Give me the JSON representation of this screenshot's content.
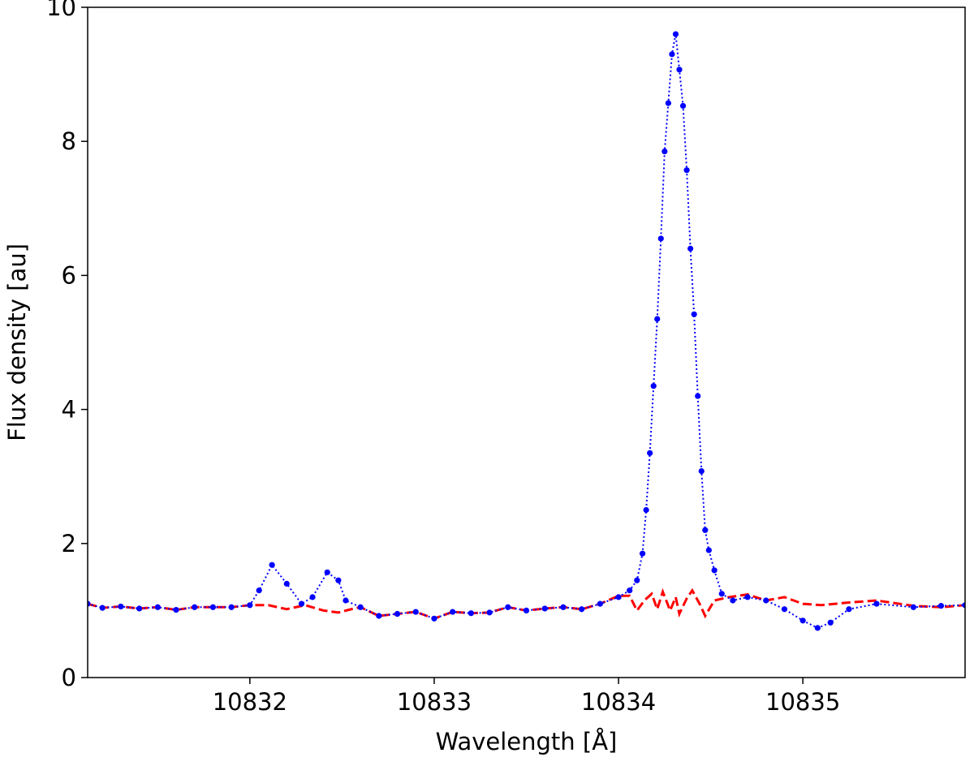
{
  "chart_data": {
    "type": "line",
    "title": "",
    "xlabel": "Wavelength [Å]",
    "ylabel": "Flux density [au]",
    "xlim": [
      10831.12,
      10835.88
    ],
    "ylim": [
      0,
      10
    ],
    "xticks": [
      10832,
      10833,
      10834,
      10835
    ],
    "xtick_labels": [
      "10832",
      "10833",
      "10834",
      "10835"
    ],
    "yticks": [
      0,
      2,
      4,
      6,
      8,
      10
    ],
    "ytick_labels": [
      "0",
      "2",
      "4",
      "6",
      "8",
      "10"
    ],
    "grid": false,
    "legend": "none",
    "series": [
      {
        "style": "dotted-with-markers",
        "color": "#0000ff",
        "points": [
          [
            10831.12,
            1.1
          ],
          [
            10831.2,
            1.04
          ],
          [
            10831.3,
            1.06
          ],
          [
            10831.4,
            1.03
          ],
          [
            10831.5,
            1.05
          ],
          [
            10831.6,
            1.01
          ],
          [
            10831.7,
            1.05
          ],
          [
            10831.8,
            1.05
          ],
          [
            10831.9,
            1.05
          ],
          [
            10832.0,
            1.08
          ],
          [
            10832.05,
            1.3
          ],
          [
            10832.12,
            1.68
          ],
          [
            10832.2,
            1.4
          ],
          [
            10832.28,
            1.1
          ],
          [
            10832.34,
            1.2
          ],
          [
            10832.42,
            1.57
          ],
          [
            10832.48,
            1.45
          ],
          [
            10832.52,
            1.15
          ],
          [
            10832.6,
            1.05
          ],
          [
            10832.7,
            0.92
          ],
          [
            10832.8,
            0.95
          ],
          [
            10832.9,
            0.98
          ],
          [
            10833.0,
            0.88
          ],
          [
            10833.1,
            0.98
          ],
          [
            10833.2,
            0.96
          ],
          [
            10833.3,
            0.97
          ],
          [
            10833.4,
            1.05
          ],
          [
            10833.5,
            1.0
          ],
          [
            10833.6,
            1.03
          ],
          [
            10833.7,
            1.05
          ],
          [
            10833.8,
            1.02
          ],
          [
            10833.9,
            1.1
          ],
          [
            10834.0,
            1.2
          ],
          [
            10834.06,
            1.3
          ],
          [
            10834.1,
            1.45
          ],
          [
            10834.13,
            1.85
          ],
          [
            10834.15,
            2.5
          ],
          [
            10834.17,
            3.35
          ],
          [
            10834.19,
            4.35
          ],
          [
            10834.21,
            5.35
          ],
          [
            10834.23,
            6.55
          ],
          [
            10834.25,
            7.85
          ],
          [
            10834.27,
            8.57
          ],
          [
            10834.29,
            9.3
          ],
          [
            10834.31,
            9.6
          ],
          [
            10834.33,
            9.07
          ],
          [
            10834.35,
            8.53
          ],
          [
            10834.37,
            7.57
          ],
          [
            10834.39,
            6.4
          ],
          [
            10834.41,
            5.42
          ],
          [
            10834.43,
            4.2
          ],
          [
            10834.45,
            3.08
          ],
          [
            10834.47,
            2.2
          ],
          [
            10834.49,
            1.9
          ],
          [
            10834.52,
            1.6
          ],
          [
            10834.56,
            1.25
          ],
          [
            10834.62,
            1.15
          ],
          [
            10834.7,
            1.2
          ],
          [
            10834.8,
            1.15
          ],
          [
            10834.9,
            1.02
          ],
          [
            10835.0,
            0.85
          ],
          [
            10835.08,
            0.74
          ],
          [
            10835.15,
            0.82
          ],
          [
            10835.25,
            1.02
          ],
          [
            10835.4,
            1.1
          ],
          [
            10835.6,
            1.05
          ],
          [
            10835.75,
            1.07
          ],
          [
            10835.88,
            1.08
          ]
        ]
      },
      {
        "style": "dashed",
        "color": "#ff0000",
        "points": [
          [
            10831.12,
            1.1
          ],
          [
            10831.2,
            1.04
          ],
          [
            10831.3,
            1.06
          ],
          [
            10831.4,
            1.03
          ],
          [
            10831.5,
            1.05
          ],
          [
            10831.6,
            1.01
          ],
          [
            10831.7,
            1.05
          ],
          [
            10831.8,
            1.05
          ],
          [
            10831.9,
            1.05
          ],
          [
            10832.0,
            1.08
          ],
          [
            10832.1,
            1.08
          ],
          [
            10832.2,
            1.02
          ],
          [
            10832.3,
            1.08
          ],
          [
            10832.4,
            1.0
          ],
          [
            10832.48,
            0.97
          ],
          [
            10832.55,
            1.02
          ],
          [
            10832.6,
            1.05
          ],
          [
            10832.7,
            0.92
          ],
          [
            10832.8,
            0.95
          ],
          [
            10832.9,
            0.98
          ],
          [
            10833.0,
            0.88
          ],
          [
            10833.1,
            0.98
          ],
          [
            10833.2,
            0.96
          ],
          [
            10833.3,
            0.97
          ],
          [
            10833.4,
            1.05
          ],
          [
            10833.5,
            1.0
          ],
          [
            10833.6,
            1.03
          ],
          [
            10833.7,
            1.05
          ],
          [
            10833.8,
            1.02
          ],
          [
            10833.9,
            1.1
          ],
          [
            10834.0,
            1.22
          ],
          [
            10834.06,
            1.22
          ],
          [
            10834.1,
            1.0
          ],
          [
            10834.14,
            1.15
          ],
          [
            10834.18,
            1.25
          ],
          [
            10834.21,
            1.02
          ],
          [
            10834.24,
            1.28
          ],
          [
            10834.28,
            1.0
          ],
          [
            10834.31,
            1.2
          ],
          [
            10834.33,
            0.95
          ],
          [
            10834.37,
            1.18
          ],
          [
            10834.4,
            1.3
          ],
          [
            10834.44,
            1.1
          ],
          [
            10834.47,
            0.92
          ],
          [
            10834.52,
            1.15
          ],
          [
            10834.6,
            1.2
          ],
          [
            10834.7,
            1.24
          ],
          [
            10834.8,
            1.15
          ],
          [
            10834.9,
            1.2
          ],
          [
            10835.0,
            1.1
          ],
          [
            10835.1,
            1.08
          ],
          [
            10835.25,
            1.12
          ],
          [
            10835.4,
            1.15
          ],
          [
            10835.6,
            1.07
          ],
          [
            10835.75,
            1.05
          ],
          [
            10835.88,
            1.08
          ]
        ]
      }
    ]
  }
}
